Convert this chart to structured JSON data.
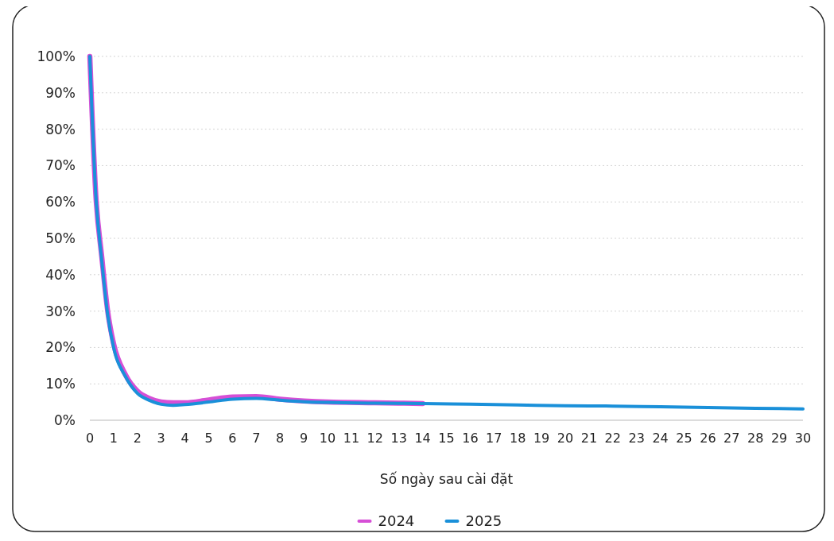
{
  "chart_data": {
    "type": "line",
    "xlabel": "Số ngày sau cài đặt",
    "x": [
      0,
      0.25,
      0.5,
      0.75,
      1,
      1.5,
      2,
      2.5,
      3,
      3.5,
      4,
      5,
      6,
      7,
      8,
      9,
      10,
      12,
      14,
      16,
      18,
      20,
      22,
      24,
      26,
      28,
      30
    ],
    "series": [
      {
        "name": "2024",
        "color": "#d64fd6",
        "values": [
          100,
          62,
          45,
          30,
          21,
          12.5,
          8,
          6,
          5,
          4.8,
          4.8,
          5.6,
          6.4,
          6.5,
          5.8,
          5.3,
          5,
          4.8,
          4.6,
          null,
          null,
          null,
          null,
          null,
          null,
          null,
          null
        ]
      },
      {
        "name": "2025",
        "color": "#1a90d9",
        "values": [
          100,
          62,
          44,
          29,
          20,
          12,
          7.4,
          5.5,
          4.4,
          4.1,
          4.3,
          5,
          5.8,
          6,
          5.5,
          5.1,
          4.9,
          4.7,
          4.6,
          4.4,
          4.2,
          4,
          3.9,
          3.7,
          3.5,
          3.3,
          3.1
        ]
      }
    ],
    "xlim": [
      0,
      30
    ],
    "xticks": [
      0,
      1,
      2,
      3,
      4,
      5,
      6,
      7,
      8,
      9,
      10,
      11,
      12,
      13,
      14,
      15,
      16,
      17,
      18,
      19,
      20,
      21,
      22,
      23,
      24,
      25,
      26,
      27,
      28,
      29,
      30
    ],
    "ylim": [
      0,
      100
    ],
    "yticks": [
      {
        "value": 0,
        "label": "0%"
      },
      {
        "value": 10,
        "label": "10%"
      },
      {
        "value": 20,
        "label": "20%"
      },
      {
        "value": 30,
        "label": "30%"
      },
      {
        "value": 40,
        "label": "40%"
      },
      {
        "value": 50,
        "label": "50%"
      },
      {
        "value": 60,
        "label": "60%"
      },
      {
        "value": 70,
        "label": "70%"
      },
      {
        "value": 80,
        "label": "80%"
      },
      {
        "value": 90,
        "label": "90%"
      },
      {
        "value": 100,
        "label": "100%"
      }
    ],
    "grid": "y",
    "legend": "bottom",
    "marker": "none",
    "line_style": "solid"
  }
}
